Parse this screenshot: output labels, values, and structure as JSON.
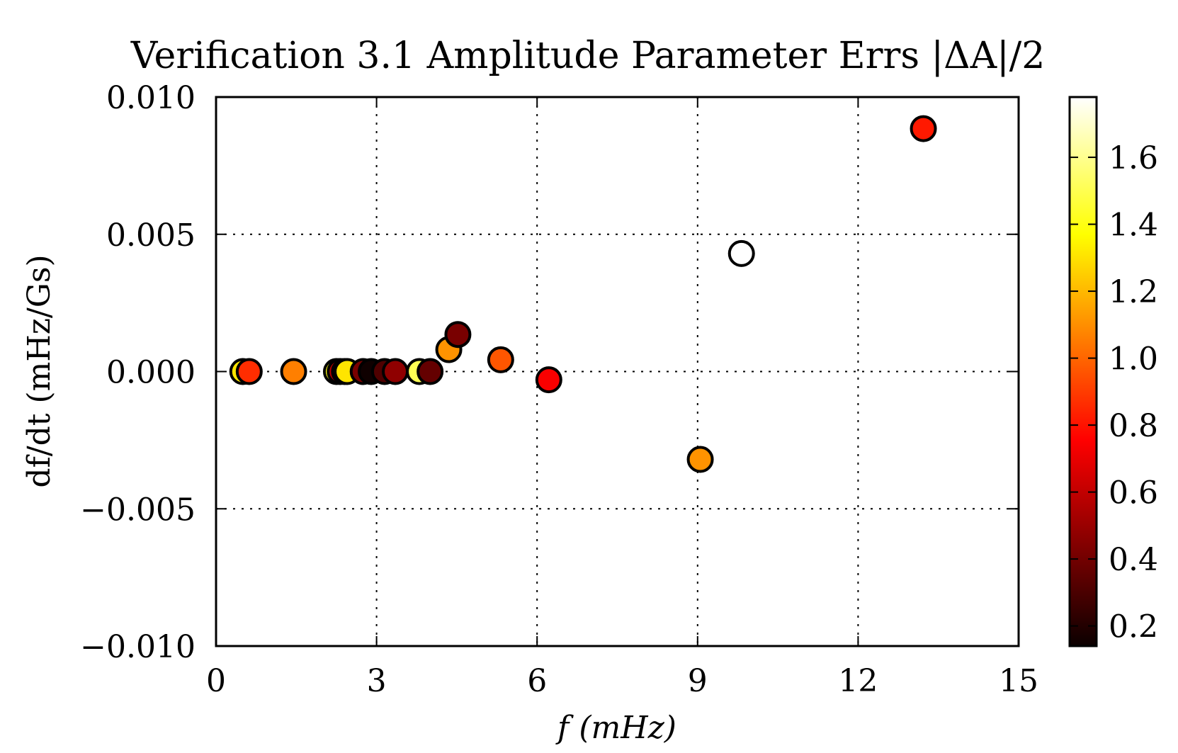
{
  "chart_data": {
    "type": "scatter",
    "title": "Verification 3.1 Amplitude Parameter Errs |ΔA|/2",
    "xlabel": "f (mHz)",
    "ylabel": "df/dt (mHz/Gs)",
    "xlim": [
      0,
      15
    ],
    "ylim": [
      -0.01,
      0.01
    ],
    "x_ticks": [
      "0",
      "3",
      "6",
      "9",
      "12",
      "15"
    ],
    "y_ticks": [
      "−0.010",
      "−0.005",
      "0.000",
      "0.005",
      "0.010"
    ],
    "grid": true,
    "colorbar": {
      "colormap": "hot",
      "range": [
        0.14,
        1.78
      ],
      "ticks": [
        "0.2",
        "0.4",
        "0.6",
        "0.8",
        "1.0",
        "1.2",
        "1.4",
        "1.6"
      ]
    },
    "points": [
      {
        "x": 0.5,
        "y": 0.0,
        "c": 1.3
      },
      {
        "x": 0.62,
        "y": 0.0,
        "c": 0.85
      },
      {
        "x": 1.45,
        "y": 0.0,
        "c": 1.05
      },
      {
        "x": 2.25,
        "y": 0.0,
        "c": 1.4
      },
      {
        "x": 2.32,
        "y": 0.0,
        "c": 0.55
      },
      {
        "x": 2.4,
        "y": 0.0,
        "c": 1.2
      },
      {
        "x": 2.45,
        "y": 0.0,
        "c": 1.3
      },
      {
        "x": 2.75,
        "y": 0.0,
        "c": 0.4
      },
      {
        "x": 2.9,
        "y": 0.0,
        "c": 0.15
      },
      {
        "x": 3.15,
        "y": 0.0,
        "c": 0.3
      },
      {
        "x": 3.35,
        "y": 0.0,
        "c": 0.45
      },
      {
        "x": 3.8,
        "y": 0.0,
        "c": 1.5
      },
      {
        "x": 4.0,
        "y": 0.0,
        "c": 0.35
      },
      {
        "x": 4.35,
        "y": 0.0008,
        "c": 1.1
      },
      {
        "x": 4.52,
        "y": 0.00135,
        "c": 0.4
      },
      {
        "x": 5.32,
        "y": 0.00043,
        "c": 0.95
      },
      {
        "x": 6.22,
        "y": -0.0003,
        "c": 0.7
      },
      {
        "x": 9.05,
        "y": -0.0032,
        "c": 1.1
      },
      {
        "x": 9.82,
        "y": 0.0043,
        "c": 1.78
      },
      {
        "x": 13.22,
        "y": 0.00885,
        "c": 0.8
      }
    ]
  }
}
